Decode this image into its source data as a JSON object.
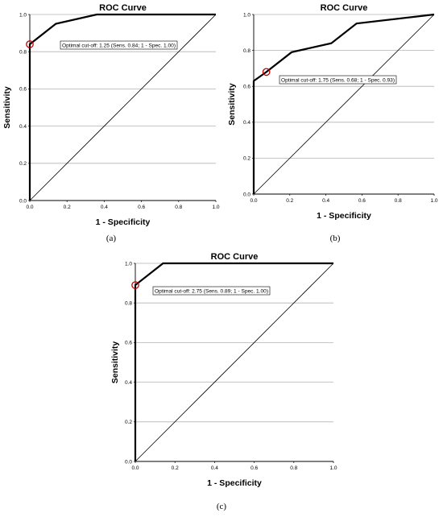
{
  "chart_data": [
    {
      "type": "line",
      "panel": "(a)",
      "title": "ROC Curve",
      "xlabel": "1 - Specificity",
      "ylabel": "Sensitivity",
      "xlim": [
        0,
        1
      ],
      "ylim": [
        0,
        1
      ],
      "x_ticks": [
        "0.0",
        "0.2",
        "0.4",
        "0.6",
        "0.8",
        "1.0"
      ],
      "y_ticks": [
        "0.0",
        "0.2",
        "0.4",
        "0.6",
        "0.8",
        "1.0"
      ],
      "grid": "horizontal",
      "series": [
        {
          "x": [
            0,
            0,
            0.14,
            0.36,
            1
          ],
          "y": [
            0,
            0.84,
            0.95,
            1,
            1
          ]
        },
        {
          "x": [
            0,
            1
          ],
          "y": [
            0,
            1
          ]
        }
      ],
      "marker": {
        "x": 0,
        "y": 0.84,
        "color": "#c00000"
      },
      "annotation": "Optimal cut-off: 1.25 (Sens. 0.84; 1 - Spec. 1.00)"
    },
    {
      "type": "line",
      "panel": "(b)",
      "title": "ROC Curve",
      "xlabel": "1 - Specificity",
      "ylabel": "Sensitivity",
      "xlim": [
        0,
        1
      ],
      "ylim": [
        0,
        1
      ],
      "x_ticks": [
        "0.0",
        "0.2",
        "0.4",
        "0.6",
        "0.8",
        "1.0"
      ],
      "y_ticks": [
        "0.0",
        "0.2",
        "0.4",
        "0.6",
        "0.8",
        "1.0"
      ],
      "grid": "horizontal",
      "series": [
        {
          "x": [
            0,
            0,
            0.07,
            0.21,
            0.43,
            0.57,
            1
          ],
          "y": [
            0,
            0.63,
            0.68,
            0.79,
            0.84,
            0.95,
            1
          ]
        },
        {
          "x": [
            0,
            1
          ],
          "y": [
            0,
            1
          ]
        }
      ],
      "marker": {
        "x": 0.07,
        "y": 0.68,
        "color": "#c00000"
      },
      "annotation": "Optimal cut-off: 1.75 (Sens. 0.68; 1 - Spec. 0.93)"
    },
    {
      "type": "line",
      "panel": "(c)",
      "title": "ROC Curve",
      "xlabel": "1 - Specificity",
      "ylabel": "Sensitivity",
      "xlim": [
        0,
        1
      ],
      "ylim": [
        0,
        1
      ],
      "x_ticks": [
        "0.0",
        "0.2",
        "0.4",
        "0.6",
        "0.8",
        "1.0"
      ],
      "y_ticks": [
        "0.0",
        "0.2",
        "0.4",
        "0.6",
        "0.8",
        "1.0"
      ],
      "grid": "horizontal",
      "series": [
        {
          "x": [
            0,
            0,
            0.14,
            1
          ],
          "y": [
            0,
            0.89,
            1,
            1
          ]
        },
        {
          "x": [
            0,
            1
          ],
          "y": [
            0,
            1
          ]
        }
      ],
      "marker": {
        "x": 0,
        "y": 0.89,
        "color": "#c00000"
      },
      "annotation": "Optimal cut-off: 2.75 (Sens. 0.89; 1 - Spec. 1.00)"
    }
  ]
}
